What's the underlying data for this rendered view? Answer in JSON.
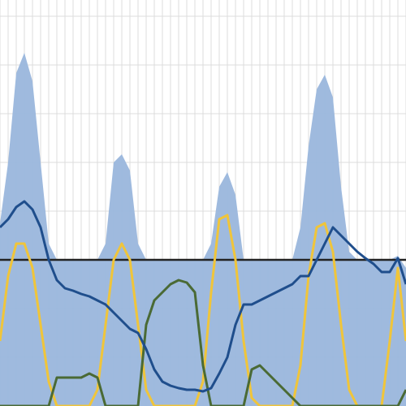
{
  "chart_data": {
    "type": "line",
    "x": [
      0,
      10,
      20,
      30,
      40,
      50,
      60,
      70,
      80,
      90,
      100,
      110,
      120,
      130,
      140,
      150,
      160,
      170,
      180,
      190,
      200,
      210,
      220,
      230,
      240,
      250,
      260,
      270,
      280,
      290,
      300,
      310,
      320,
      330,
      340,
      350,
      360,
      370,
      380,
      390,
      400,
      410,
      420,
      430,
      440,
      450,
      460,
      470,
      480,
      490,
      500
    ],
    "xlim": [
      0,
      500
    ],
    "ylim": [
      0,
      500
    ],
    "xticks": [
      0,
      10,
      20,
      30,
      40,
      50,
      60,
      70,
      80,
      90,
      100,
      110,
      120,
      130,
      140,
      150,
      160,
      170,
      180,
      190,
      200,
      210,
      220,
      230,
      240,
      250,
      260,
      270,
      280,
      290,
      300,
      310,
      320,
      330,
      340,
      350,
      360,
      370,
      380,
      390,
      400,
      410,
      420,
      430,
      440,
      450,
      460,
      470,
      480,
      490,
      500
    ],
    "yticks": [
      0,
      60,
      120,
      180,
      240,
      300,
      360,
      420,
      480
    ],
    "grid": true,
    "hline": 180,
    "hline_color": "#222222",
    "area": {
      "color": "#9ab6dc",
      "values": [
        225,
        300,
        410,
        435,
        400,
        300,
        200,
        180,
        180,
        180,
        180,
        180,
        180,
        200,
        300,
        310,
        290,
        200,
        180,
        180,
        180,
        180,
        180,
        180,
        180,
        180,
        200,
        270,
        288,
        260,
        180,
        180,
        180,
        180,
        180,
        180,
        180,
        220,
        320,
        390,
        408,
        380,
        270,
        190,
        180,
        180,
        180,
        180,
        180,
        185,
        170
      ]
    },
    "series": [
      {
        "color": "#f0c53a",
        "values": [
          80,
          160,
          200,
          200,
          170,
          100,
          30,
          0,
          0,
          0,
          0,
          0,
          20,
          100,
          180,
          200,
          180,
          100,
          20,
          0,
          0,
          0,
          0,
          0,
          0,
          30,
          140,
          230,
          235,
          180,
          80,
          10,
          0,
          0,
          0,
          0,
          0,
          50,
          160,
          220,
          225,
          190,
          100,
          20,
          0,
          0,
          0,
          0,
          80,
          170,
          80
        ]
      },
      {
        "color": "#4a6a35",
        "values": [
          0,
          0,
          0,
          0,
          0,
          0,
          0,
          35,
          35,
          35,
          35,
          40,
          35,
          0,
          0,
          0,
          0,
          0,
          100,
          130,
          140,
          150,
          155,
          152,
          140,
          50,
          0,
          0,
          0,
          0,
          0,
          45,
          50,
          40,
          30,
          20,
          10,
          0,
          0,
          0,
          0,
          0,
          0,
          0,
          0,
          0,
          0,
          0,
          0,
          0,
          20
        ]
      },
      {
        "color": "#1f4e8c",
        "values": [
          220,
          230,
          245,
          252,
          242,
          220,
          180,
          155,
          145,
          142,
          138,
          135,
          130,
          125,
          115,
          105,
          95,
          90,
          70,
          45,
          30,
          25,
          22,
          20,
          20,
          18,
          22,
          40,
          60,
          100,
          125,
          125,
          130,
          135,
          140,
          145,
          150,
          160,
          160,
          180,
          200,
          220,
          210,
          200,
          190,
          182,
          175,
          165,
          165,
          182,
          150
        ]
      }
    ]
  }
}
